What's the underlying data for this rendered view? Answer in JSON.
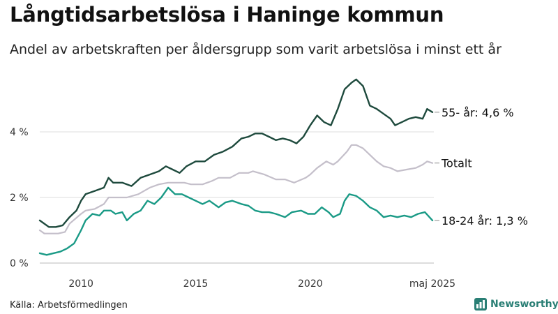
{
  "title": "Långtidsarbetslösa i Haninge kommun",
  "subtitle": "Andel av arbetskraften per åldersgrupp som varit arbetslösa i minst ett år",
  "source": "Källa: Arbetsförmedlingen",
  "brand": "Newsworthy",
  "colors": {
    "s55": "#1e4a3d",
    "total": "#c4bfca",
    "s1824": "#1a9a86",
    "grid": "#dddddd",
    "brand": "#2a7f75"
  },
  "chart_data": {
    "type": "line",
    "xlim": [
      2008.2,
      2025.33
    ],
    "ylim": [
      0,
      6
    ],
    "y_ticks": [
      0,
      2,
      4
    ],
    "y_tick_labels": [
      "0 %",
      "2 %",
      "4 %"
    ],
    "x_ticks": [
      2010,
      2015,
      2020,
      2025.33
    ],
    "x_tick_labels": [
      "2010",
      "2015",
      "2020",
      "maj 2025"
    ],
    "grid": "horizontal",
    "series": [
      {
        "key": "s55",
        "label": "55- år: 4,6 %",
        "points": [
          [
            2008.2,
            1.3
          ],
          [
            2008.4,
            1.2
          ],
          [
            2008.6,
            1.1
          ],
          [
            2008.9,
            1.1
          ],
          [
            2009.2,
            1.15
          ],
          [
            2009.5,
            1.4
          ],
          [
            2009.8,
            1.6
          ],
          [
            2010.0,
            1.9
          ],
          [
            2010.2,
            2.1
          ],
          [
            2010.6,
            2.2
          ],
          [
            2011.0,
            2.3
          ],
          [
            2011.2,
            2.6
          ],
          [
            2011.4,
            2.45
          ],
          [
            2011.8,
            2.45
          ],
          [
            2012.2,
            2.35
          ],
          [
            2012.6,
            2.6
          ],
          [
            2013.0,
            2.7
          ],
          [
            2013.4,
            2.8
          ],
          [
            2013.7,
            2.95
          ],
          [
            2014.0,
            2.85
          ],
          [
            2014.3,
            2.75
          ],
          [
            2014.6,
            2.95
          ],
          [
            2015.0,
            3.1
          ],
          [
            2015.4,
            3.1
          ],
          [
            2015.8,
            3.3
          ],
          [
            2016.2,
            3.4
          ],
          [
            2016.6,
            3.55
          ],
          [
            2017.0,
            3.8
          ],
          [
            2017.3,
            3.85
          ],
          [
            2017.6,
            3.95
          ],
          [
            2017.9,
            3.95
          ],
          [
            2018.2,
            3.85
          ],
          [
            2018.5,
            3.75
          ],
          [
            2018.8,
            3.8
          ],
          [
            2019.1,
            3.75
          ],
          [
            2019.4,
            3.65
          ],
          [
            2019.7,
            3.85
          ],
          [
            2020.0,
            4.2
          ],
          [
            2020.3,
            4.5
          ],
          [
            2020.6,
            4.3
          ],
          [
            2020.9,
            4.2
          ],
          [
            2021.2,
            4.7
          ],
          [
            2021.5,
            5.3
          ],
          [
            2021.8,
            5.5
          ],
          [
            2022.0,
            5.6
          ],
          [
            2022.3,
            5.4
          ],
          [
            2022.6,
            4.8
          ],
          [
            2022.9,
            4.7
          ],
          [
            2023.2,
            4.55
          ],
          [
            2023.5,
            4.4
          ],
          [
            2023.7,
            4.2
          ],
          [
            2024.0,
            4.3
          ],
          [
            2024.3,
            4.4
          ],
          [
            2024.6,
            4.45
          ],
          [
            2024.9,
            4.4
          ],
          [
            2025.1,
            4.7
          ],
          [
            2025.33,
            4.6
          ]
        ]
      },
      {
        "key": "total",
        "label": "Totalt",
        "points": [
          [
            2008.2,
            1.0
          ],
          [
            2008.4,
            0.9
          ],
          [
            2009.0,
            0.9
          ],
          [
            2009.3,
            0.95
          ],
          [
            2009.5,
            1.2
          ],
          [
            2010.0,
            1.5
          ],
          [
            2010.2,
            1.6
          ],
          [
            2010.6,
            1.65
          ],
          [
            2011.0,
            1.8
          ],
          [
            2011.2,
            2.0
          ],
          [
            2012.0,
            2.0
          ],
          [
            2012.5,
            2.1
          ],
          [
            2013.0,
            2.3
          ],
          [
            2013.4,
            2.4
          ],
          [
            2013.8,
            2.45
          ],
          [
            2014.2,
            2.45
          ],
          [
            2014.5,
            2.45
          ],
          [
            2014.8,
            2.4
          ],
          [
            2015.3,
            2.4
          ],
          [
            2015.7,
            2.5
          ],
          [
            2016.0,
            2.6
          ],
          [
            2016.5,
            2.6
          ],
          [
            2016.9,
            2.75
          ],
          [
            2017.3,
            2.75
          ],
          [
            2017.5,
            2.8
          ],
          [
            2018.0,
            2.7
          ],
          [
            2018.5,
            2.55
          ],
          [
            2018.9,
            2.55
          ],
          [
            2019.3,
            2.45
          ],
          [
            2019.8,
            2.6
          ],
          [
            2020.0,
            2.7
          ],
          [
            2020.3,
            2.9
          ],
          [
            2020.7,
            3.1
          ],
          [
            2021.0,
            3.0
          ],
          [
            2021.2,
            3.1
          ],
          [
            2021.6,
            3.4
          ],
          [
            2021.8,
            3.6
          ],
          [
            2022.0,
            3.6
          ],
          [
            2022.3,
            3.5
          ],
          [
            2022.6,
            3.3
          ],
          [
            2022.9,
            3.1
          ],
          [
            2023.2,
            2.95
          ],
          [
            2023.5,
            2.9
          ],
          [
            2023.8,
            2.8
          ],
          [
            2024.2,
            2.85
          ],
          [
            2024.6,
            2.9
          ],
          [
            2024.9,
            3.0
          ],
          [
            2025.1,
            3.1
          ],
          [
            2025.33,
            3.05
          ]
        ]
      },
      {
        "key": "s1824",
        "label": "18-24 år: 1,3 %",
        "points": [
          [
            2008.2,
            0.3
          ],
          [
            2008.5,
            0.25
          ],
          [
            2008.8,
            0.3
          ],
          [
            2009.1,
            0.35
          ],
          [
            2009.4,
            0.45
          ],
          [
            2009.7,
            0.6
          ],
          [
            2010.0,
            1.0
          ],
          [
            2010.2,
            1.3
          ],
          [
            2010.5,
            1.5
          ],
          [
            2010.8,
            1.45
          ],
          [
            2011.0,
            1.6
          ],
          [
            2011.3,
            1.6
          ],
          [
            2011.5,
            1.5
          ],
          [
            2011.8,
            1.55
          ],
          [
            2012.0,
            1.3
          ],
          [
            2012.3,
            1.5
          ],
          [
            2012.6,
            1.6
          ],
          [
            2012.9,
            1.9
          ],
          [
            2013.2,
            1.8
          ],
          [
            2013.5,
            2.0
          ],
          [
            2013.8,
            2.3
          ],
          [
            2014.1,
            2.1
          ],
          [
            2014.4,
            2.1
          ],
          [
            2014.7,
            2.0
          ],
          [
            2015.0,
            1.9
          ],
          [
            2015.3,
            1.8
          ],
          [
            2015.6,
            1.9
          ],
          [
            2016.0,
            1.7
          ],
          [
            2016.3,
            1.85
          ],
          [
            2016.6,
            1.9
          ],
          [
            2017.0,
            1.8
          ],
          [
            2017.3,
            1.75
          ],
          [
            2017.6,
            1.6
          ],
          [
            2017.9,
            1.55
          ],
          [
            2018.2,
            1.55
          ],
          [
            2018.5,
            1.5
          ],
          [
            2018.9,
            1.4
          ],
          [
            2019.2,
            1.55
          ],
          [
            2019.6,
            1.6
          ],
          [
            2019.9,
            1.5
          ],
          [
            2020.2,
            1.5
          ],
          [
            2020.5,
            1.7
          ],
          [
            2020.8,
            1.55
          ],
          [
            2021.0,
            1.4
          ],
          [
            2021.3,
            1.5
          ],
          [
            2021.5,
            1.9
          ],
          [
            2021.7,
            2.1
          ],
          [
            2022.0,
            2.05
          ],
          [
            2022.3,
            1.9
          ],
          [
            2022.6,
            1.7
          ],
          [
            2022.9,
            1.6
          ],
          [
            2023.2,
            1.4
          ],
          [
            2023.5,
            1.45
          ],
          [
            2023.8,
            1.4
          ],
          [
            2024.1,
            1.45
          ],
          [
            2024.4,
            1.4
          ],
          [
            2024.7,
            1.5
          ],
          [
            2025.0,
            1.55
          ],
          [
            2025.33,
            1.3
          ]
        ]
      }
    ]
  }
}
